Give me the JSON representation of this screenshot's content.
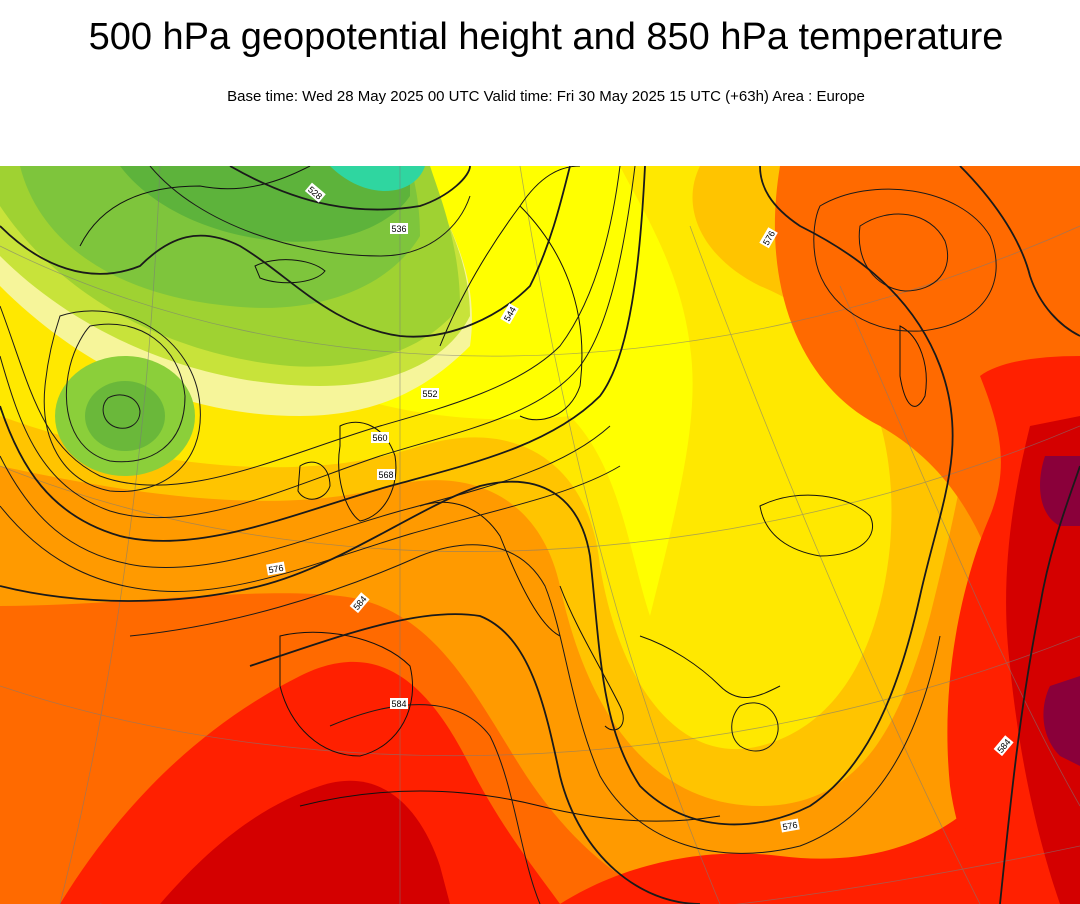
{
  "header": {
    "title": "500 hPa geopotential height and 850 hPa temperature",
    "subtitle": "Base time: Wed 28 May 2025 00 UTC Valid time: Fri 30 May 2025 15 UTC (+63h) Area : Europe"
  },
  "map": {
    "area": "Europe",
    "colors": {
      "cold_teal": "#2fd6a0",
      "green_dark": "#5fb33a",
      "green": "#7fc63a",
      "green_light": "#a8d82f",
      "yellow_green": "#cde632",
      "pale_yellow": "#fbf78c",
      "yellow": "#ffff00",
      "gold": "#ffd400",
      "orange_light": "#ffb000",
      "orange": "#ff8c00",
      "orange_dark": "#ff6400",
      "red": "#ff1e00",
      "red_dark": "#d60000",
      "maroon": "#8a003a"
    },
    "contour_labels": [
      {
        "id": "l1",
        "text": "528"
      },
      {
        "id": "l2",
        "text": "552"
      },
      {
        "id": "l3",
        "text": "560"
      },
      {
        "id": "l4",
        "text": "568"
      },
      {
        "id": "l5",
        "text": "576"
      },
      {
        "id": "l6",
        "text": "584"
      },
      {
        "id": "l7",
        "text": "576"
      },
      {
        "id": "l8",
        "text": "576"
      },
      {
        "id": "l9",
        "text": "584"
      },
      {
        "id": "l10",
        "text": "584"
      },
      {
        "id": "l11",
        "text": "544"
      },
      {
        "id": "l12",
        "text": "536"
      }
    ]
  }
}
